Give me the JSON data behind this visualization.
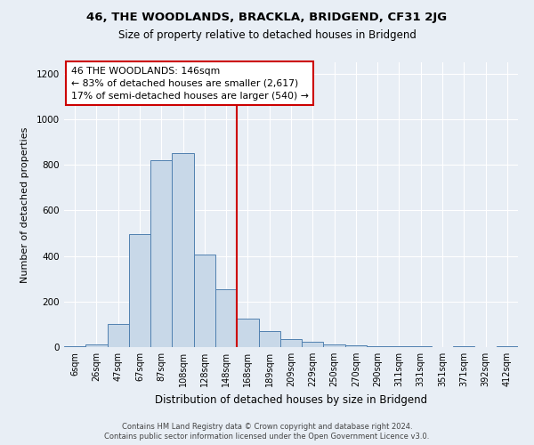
{
  "title1": "46, THE WOODLANDS, BRACKLA, BRIDGEND, CF31 2JG",
  "title2": "Size of property relative to detached houses in Bridgend",
  "xlabel": "Distribution of detached houses by size in Bridgend",
  "ylabel": "Number of detached properties",
  "bin_labels": [
    "6sqm",
    "26sqm",
    "47sqm",
    "67sqm",
    "87sqm",
    "108sqm",
    "128sqm",
    "148sqm",
    "168sqm",
    "189sqm",
    "209sqm",
    "229sqm",
    "250sqm",
    "270sqm",
    "290sqm",
    "311sqm",
    "331sqm",
    "351sqm",
    "371sqm",
    "392sqm",
    "412sqm"
  ],
  "bar_heights": [
    5,
    10,
    100,
    495,
    820,
    850,
    405,
    255,
    125,
    70,
    35,
    22,
    12,
    8,
    5,
    4,
    3,
    1,
    2,
    1,
    5
  ],
  "bar_color": "#c8d8e8",
  "bar_edge_color": "#5080b0",
  "vline_color": "#cc0000",
  "annotation_title": "46 THE WOODLANDS: 146sqm",
  "annotation_line1": "← 83% of detached houses are smaller (2,617)",
  "annotation_line2": "17% of semi-detached houses are larger (540) →",
  "annotation_box_color": "#ffffff",
  "annotation_box_edge": "#cc0000",
  "ylim": [
    0,
    1250
  ],
  "yticks": [
    0,
    200,
    400,
    600,
    800,
    1000,
    1200
  ],
  "footer1": "Contains HM Land Registry data © Crown copyright and database right 2024.",
  "footer2": "Contains public sector information licensed under the Open Government Licence v3.0.",
  "bg_color": "#e8eef5",
  "title1_fontsize": 9.5,
  "title2_fontsize": 8.5,
  "xlabel_fontsize": 8.5,
  "ylabel_fontsize": 8.0,
  "tick_fontsize": 7.0,
  "ytick_fontsize": 7.5,
  "annotation_fontsize": 7.8,
  "footer_fontsize": 6.0
}
